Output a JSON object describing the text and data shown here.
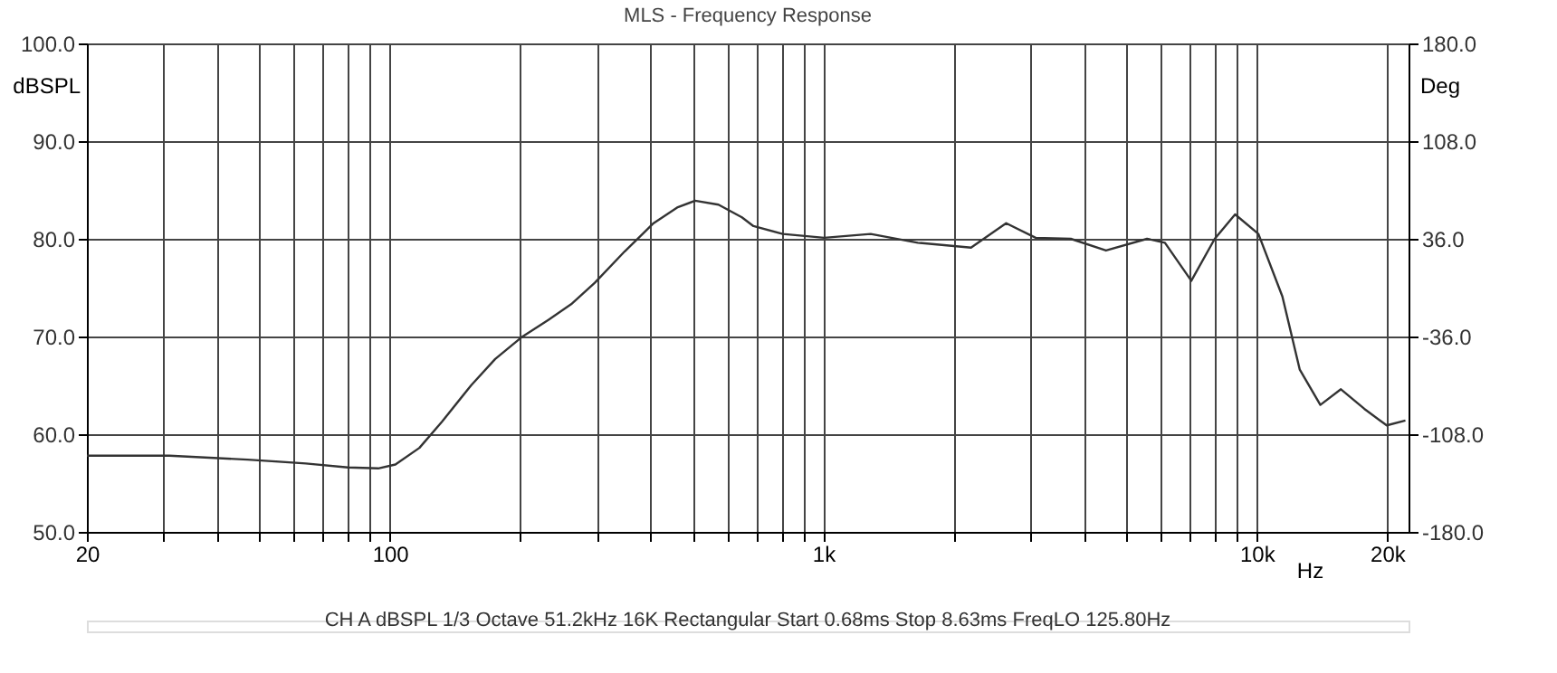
{
  "chart_data": {
    "type": "line",
    "title": "MLS - Frequency Response",
    "xlabel": "Hz",
    "ylabel": "dBSPL",
    "y2label": "Deg",
    "annotations": [
      "CH A   dBSPL   1/3 Octave   51.2kHz   16K   Rectangular   Start 0.68ms   Stop 8.63ms   FreqLO 125.80Hz"
    ],
    "log": "x",
    "grid": true,
    "marker": "none",
    "line_style": "solid",
    "x": [
      20,
      31,
      47,
      64,
      80,
      94,
      103,
      117,
      132,
      154,
      175,
      201,
      232,
      262,
      297,
      348,
      406,
      460,
      506,
      573,
      649,
      690,
      806,
      1005,
      1286,
      1652,
      2192,
      2642,
      3090,
      3724,
      4490,
      5584,
      6140,
      7064,
      8000,
      8915,
      10090,
      11460,
      12570,
      14020,
      15640,
      17710,
      19950,
      22030
    ],
    "series": [
      {
        "color": "#333333",
        "values": [
          57.8,
          57.8,
          57.4,
          57.0,
          56.6,
          56.5,
          56.9,
          58.6,
          61.3,
          65.0,
          67.7,
          69.9,
          71.7,
          73.3,
          75.5,
          78.7,
          81.6,
          83.2,
          83.9,
          83.5,
          82.2,
          81.3,
          80.5,
          80.1,
          80.5,
          79.6,
          79.1,
          81.6,
          80.1,
          80.0,
          78.8,
          80.0,
          79.6,
          75.7,
          80.0,
          82.5,
          80.5,
          74.1,
          66.6,
          63.0,
          64.6,
          62.6,
          60.9,
          61.4
        ]
      }
    ],
    "xlim": [
      20,
      22400
    ],
    "xticks": [
      20,
      {
        "value": 30,
        "label": null
      },
      {
        "value": 40,
        "label": null
      },
      {
        "value": 50,
        "label": null
      },
      {
        "value": 60,
        "label": null
      },
      {
        "value": 70,
        "label": null
      },
      {
        "value": 80,
        "label": null
      },
      {
        "value": 90,
        "label": null
      },
      100,
      {
        "value": 200,
        "label": null
      },
      {
        "value": 300,
        "label": null
      },
      {
        "value": 400,
        "label": null
      },
      {
        "value": 500,
        "label": null
      },
      {
        "value": 600,
        "label": null
      },
      {
        "value": 700,
        "label": null
      },
      {
        "value": 800,
        "label": null
      },
      {
        "value": 900,
        "label": null
      },
      {
        "value": 1000,
        "label": "1k"
      },
      {
        "value": 2000,
        "label": null
      },
      {
        "value": 3000,
        "label": null
      },
      {
        "value": 4000,
        "label": null
      },
      {
        "value": 5000,
        "label": null
      },
      {
        "value": 6000,
        "label": null
      },
      {
        "value": 7000,
        "label": null
      },
      {
        "value": 8000,
        "label": null
      },
      {
        "value": 9000,
        "label": null
      },
      {
        "value": 10000,
        "label": "10k"
      },
      {
        "value": 20000,
        "label": "20k"
      }
    ],
    "ylim": [
      50,
      100
    ],
    "yticks": [
      {
        "value": 50,
        "label": "50.0"
      },
      {
        "value": 60,
        "label": "60.0"
      },
      {
        "value": 70,
        "label": "70.0"
      },
      {
        "value": 80,
        "label": "80.0"
      },
      {
        "value": 90,
        "label": "90.0"
      },
      {
        "value": 100,
        "label": "100.0"
      }
    ],
    "y2lim": [
      -180,
      180
    ],
    "y2ticks": [
      {
        "value": -180,
        "label": "-180.0"
      },
      {
        "value": -108,
        "label": "-108.0"
      },
      {
        "value": -36,
        "label": "-36.0"
      },
      {
        "value": 36,
        "label": "36.0"
      },
      {
        "value": 108,
        "label": "108.0"
      },
      {
        "value": 180,
        "label": "180.0"
      }
    ]
  }
}
